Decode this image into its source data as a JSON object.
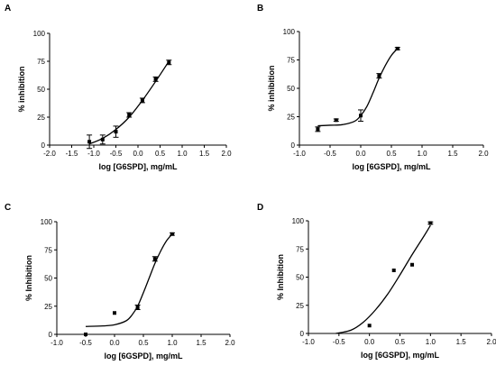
{
  "chart_data": [
    {
      "panel": "A",
      "type": "scatter",
      "xlabel": "log [G6SPD], mg/mL",
      "ylabel": "% inhibition",
      "xlim": [
        -2.0,
        2.0
      ],
      "ylim": [
        0,
        100
      ],
      "xticks": [
        "-2.0",
        "-1.5",
        "-1.0",
        "-0.5",
        "0.0",
        "0.5",
        "1.0",
        "1.5",
        "2.0"
      ],
      "yticks": [
        "0",
        "25",
        "50",
        "75",
        "100"
      ],
      "x": [
        -1.1,
        -0.8,
        -0.5,
        -0.2,
        0.1,
        0.4,
        0.7
      ],
      "y": [
        3,
        5,
        12,
        27,
        40,
        59,
        74
      ],
      "err": [
        6,
        4,
        5,
        2,
        2,
        2,
        2
      ],
      "curve": {
        "x": [
          -1.1,
          -0.8,
          -0.5,
          -0.2,
          0.1,
          0.4,
          0.7
        ],
        "y": [
          1,
          6,
          14,
          25,
          40,
          57,
          75
        ]
      }
    },
    {
      "panel": "B",
      "type": "scatter",
      "xlabel": "log [6GSPD], mg/mL",
      "ylabel": "% inhibition",
      "xlim": [
        -1.0,
        2.0
      ],
      "ylim": [
        0,
        100
      ],
      "xticks": [
        "-1.0",
        "-0.5",
        "0.0",
        "0.5",
        "1.0",
        "1.5",
        "2.0"
      ],
      "yticks": [
        "0",
        "25",
        "50",
        "75",
        "100"
      ],
      "x": [
        -0.7,
        -0.4,
        0.0,
        0.3,
        0.6
      ],
      "y": [
        14,
        22,
        26,
        61,
        85
      ],
      "err": [
        2,
        1,
        5,
        2,
        1
      ],
      "curve": {
        "x": [
          -0.7,
          -0.5,
          -0.3,
          -0.1,
          0.0,
          0.1,
          0.2,
          0.3,
          0.4,
          0.5,
          0.6
        ],
        "y": [
          17,
          17.5,
          18,
          21,
          26,
          34,
          46,
          59,
          70,
          79,
          85
        ]
      }
    },
    {
      "panel": "C",
      "type": "scatter",
      "xlabel": "log [6GSPD], mg/mL",
      "ylabel": "% Inhibition",
      "xlim": [
        -1.0,
        2.0
      ],
      "ylim": [
        0,
        100
      ],
      "xticks": [
        "-1.0",
        "-0.5",
        "0.0",
        "0.5",
        "1.0",
        "1.5",
        "2.0"
      ],
      "yticks": [
        "0",
        "25",
        "50",
        "75",
        "100"
      ],
      "x": [
        -0.5,
        0.0,
        0.4,
        0.7,
        1.0
      ],
      "y": [
        0,
        19,
        24,
        67,
        89
      ],
      "err": [
        0,
        0,
        2,
        2,
        1
      ],
      "curve": {
        "x": [
          -0.5,
          -0.2,
          0.0,
          0.2,
          0.3,
          0.4,
          0.5,
          0.6,
          0.7,
          0.8,
          0.9,
          1.0
        ],
        "y": [
          7,
          7.5,
          8.5,
          12,
          17,
          25,
          37,
          50,
          63,
          74,
          83,
          89
        ]
      }
    },
    {
      "panel": "D",
      "type": "scatter",
      "xlabel": "log [6GSPD], mg/mL",
      "ylabel": "% Inhibition",
      "xlim": [
        -1.0,
        2.0
      ],
      "ylim": [
        0,
        100
      ],
      "xticks": [
        "-1.0",
        "-0.5",
        "0.0",
        "0.5",
        "1.0",
        "1.5",
        "2.0"
      ],
      "yticks": [
        "0",
        "25",
        "50",
        "75",
        "100"
      ],
      "x": [
        0.0,
        0.4,
        0.7,
        1.0
      ],
      "y": [
        7,
        56,
        61,
        98
      ],
      "err": [
        0,
        0,
        0,
        1
      ],
      "curve": {
        "x": [
          -0.55,
          -0.3,
          -0.1,
          0.1,
          0.3,
          0.5,
          0.7,
          0.9,
          1.0
        ],
        "y": [
          0,
          3,
          10,
          21,
          35,
          52,
          70,
          87,
          96
        ]
      }
    }
  ]
}
